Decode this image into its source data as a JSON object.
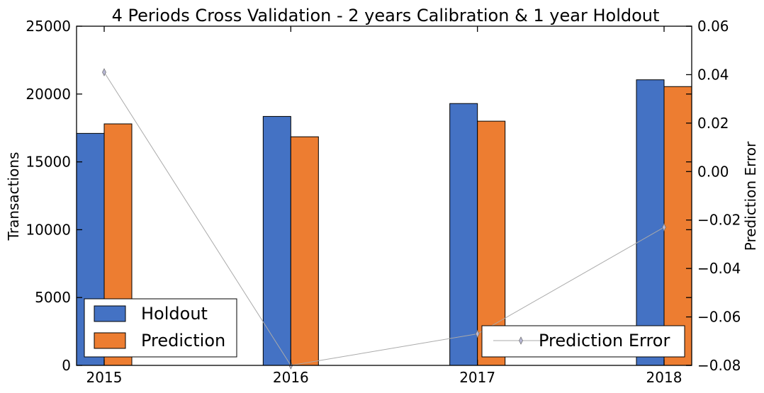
{
  "chart_data": {
    "type": "bar",
    "title": "4 Periods Cross Validation - 2 years Calibration & 1 year Holdout",
    "xlabel": "",
    "ylabel": "Transactions",
    "y2label": "Prediction Error",
    "categories": [
      "2015",
      "2016",
      "2017",
      "2018"
    ],
    "ylim": [
      0,
      25000
    ],
    "y2lim": [
      -0.08,
      0.06
    ],
    "yticks": [
      "0",
      "5000",
      "10000",
      "15000",
      "20000",
      "25000"
    ],
    "y2ticks": [
      "−0.08",
      "−0.06",
      "−0.04",
      "−0.02",
      "0.00",
      "0.02",
      "0.04",
      "0.06"
    ],
    "series": [
      {
        "name": "Holdout",
        "color": "#4472c4",
        "values": [
          17100,
          18350,
          19300,
          21050
        ]
      },
      {
        "name": "Prediction",
        "color": "#ed7d31",
        "values": [
          17800,
          16850,
          18000,
          20550
        ]
      }
    ],
    "line_series": {
      "name": "Prediction Error",
      "axis": "right",
      "color": "#aaaaaa",
      "marker": "thin_diamond",
      "values": [
        0.041,
        -0.08,
        -0.067,
        -0.023
      ]
    },
    "legends": [
      "lower-left",
      "lower-right"
    ],
    "grid": false
  }
}
